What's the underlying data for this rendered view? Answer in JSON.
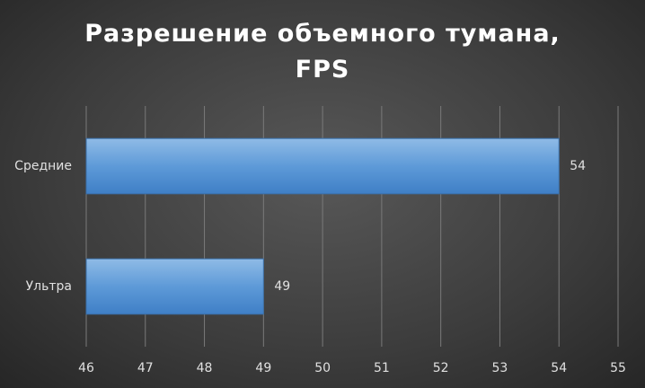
{
  "chart_data": {
    "type": "barh",
    "title": "Разрешение объемного тумана, FPS",
    "categories": [
      "Средние",
      "Ультра"
    ],
    "values": [
      54,
      49
    ],
    "color": "#5b9bd5",
    "xlim": [
      46,
      55
    ],
    "xticks": [
      46,
      47,
      48,
      49,
      50,
      51,
      52,
      53,
      54,
      55
    ],
    "grid": true
  }
}
